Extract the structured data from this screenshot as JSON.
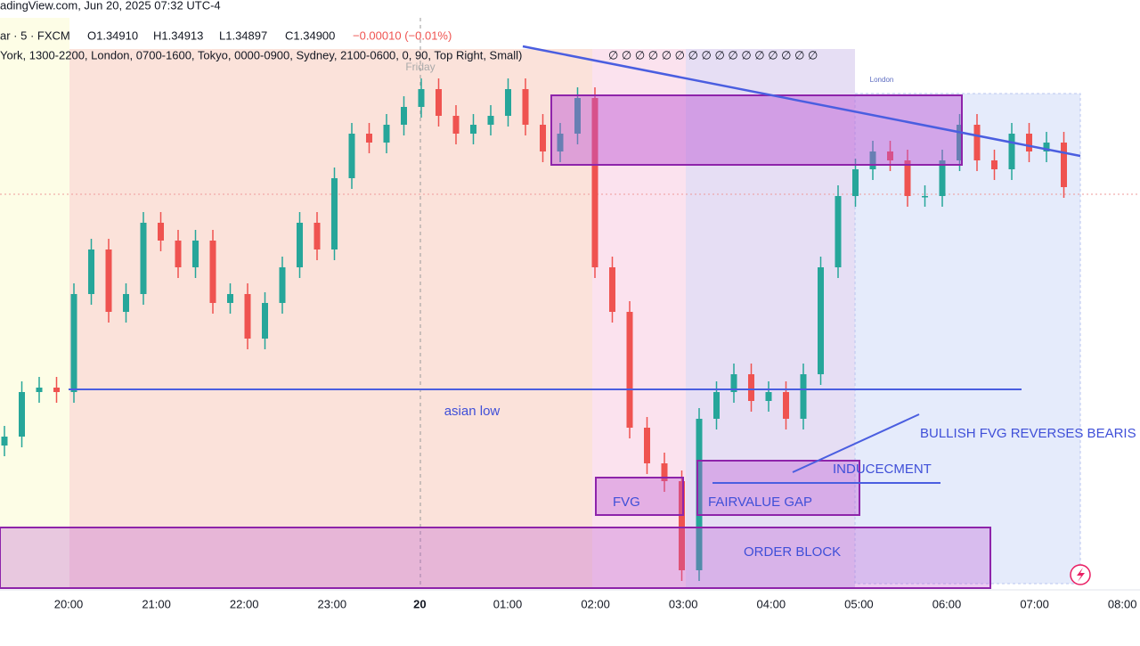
{
  "header": {
    "source": "adingView.com, Jun 20, 2025 07:32 UTC-4",
    "symbol": "ar · 5 · FXCM",
    "open": "O1.34910",
    "high": "H1.34913",
    "low": "L1.34897",
    "close": "C1.34900",
    "change": "−0.00010 (−0.01%)",
    "sessions": "York, 1300-2200, London, 0700-1600, Tokyo, 0000-0900, Sydney, 2100-0600, 0, 90, Top Right, Small)",
    "icons": "∅ ∅ ∅ ∅ ∅ ∅ ∅ ∅ ∅ ∅ ∅ ∅ ∅ ∅ ∅ ∅"
  },
  "chart_data": {
    "type": "candlestick",
    "ylim": [
      1.34458,
      1.35098
    ],
    "up_color": "#26a69a",
    "down_color": "#ef5350",
    "candles": [
      [
        1.34618,
        1.3464,
        1.34606,
        1.34628
      ],
      [
        1.34628,
        1.3469,
        1.34616,
        1.34678
      ],
      [
        1.34678,
        1.34695,
        1.34666,
        1.34683
      ],
      [
        1.34683,
        1.34695,
        1.34666,
        1.34678
      ],
      [
        1.34678,
        1.348,
        1.34666,
        1.34788
      ],
      [
        1.34788,
        1.3485,
        1.34776,
        1.34838
      ],
      [
        1.34838,
        1.3485,
        1.34756,
        1.34768
      ],
      [
        1.34768,
        1.348,
        1.34756,
        1.34788
      ],
      [
        1.34788,
        1.3488,
        1.34776,
        1.34868
      ],
      [
        1.34868,
        1.3488,
        1.34836,
        1.34848
      ],
      [
        1.34848,
        1.3486,
        1.34806,
        1.34818
      ],
      [
        1.34818,
        1.3486,
        1.34806,
        1.34848
      ],
      [
        1.34848,
        1.3486,
        1.34766,
        1.34778
      ],
      [
        1.34778,
        1.348,
        1.34766,
        1.34788
      ],
      [
        1.34788,
        1.348,
        1.34726,
        1.34738
      ],
      [
        1.34738,
        1.3479,
        1.34726,
        1.34778
      ],
      [
        1.34778,
        1.3483,
        1.34766,
        1.34818
      ],
      [
        1.34818,
        1.3488,
        1.34806,
        1.34868
      ],
      [
        1.34868,
        1.3488,
        1.34826,
        1.34838
      ],
      [
        1.34838,
        1.3493,
        1.34826,
        1.34918
      ],
      [
        1.34918,
        1.3498,
        1.34906,
        1.34968
      ],
      [
        1.34968,
        1.3498,
        1.34946,
        1.34958
      ],
      [
        1.34958,
        1.3499,
        1.34946,
        1.34978
      ],
      [
        1.34978,
        1.3501,
        1.34966,
        1.34998
      ],
      [
        1.34998,
        1.3503,
        1.34986,
        1.35018
      ],
      [
        1.35018,
        1.3503,
        1.34976,
        1.34988
      ],
      [
        1.34988,
        1.35,
        1.34956,
        1.34968
      ],
      [
        1.34968,
        1.3499,
        1.34956,
        1.34978
      ],
      [
        1.34978,
        1.35,
        1.34966,
        1.34988
      ],
      [
        1.34988,
        1.3503,
        1.34976,
        1.35018
      ],
      [
        1.35018,
        1.3503,
        1.34966,
        1.34978
      ],
      [
        1.34978,
        1.3499,
        1.34936,
        1.34948
      ],
      [
        1.34948,
        1.3498,
        1.34936,
        1.34968
      ],
      [
        1.34968,
        1.3502,
        1.34956,
        1.35008
      ],
      [
        1.35008,
        1.3502,
        1.34806,
        1.34818
      ],
      [
        1.34818,
        1.3483,
        1.34756,
        1.34768
      ],
      [
        1.34768,
        1.3478,
        1.34626,
        1.34638
      ],
      [
        1.34638,
        1.3465,
        1.34586,
        1.34598
      ],
      [
        1.34598,
        1.3461,
        1.34566,
        1.34578
      ],
      [
        1.34578,
        1.3459,
        1.34466,
        1.34478
      ],
      [
        1.34478,
        1.3466,
        1.34466,
        1.34648
      ],
      [
        1.34648,
        1.3469,
        1.34636,
        1.34678
      ],
      [
        1.34678,
        1.3471,
        1.34666,
        1.34698
      ],
      [
        1.34698,
        1.3471,
        1.34656,
        1.34668
      ],
      [
        1.34668,
        1.3469,
        1.34656,
        1.34678
      ],
      [
        1.34678,
        1.3469,
        1.34636,
        1.34648
      ],
      [
        1.34648,
        1.3471,
        1.34636,
        1.34698
      ],
      [
        1.34698,
        1.3483,
        1.34686,
        1.34818
      ],
      [
        1.34818,
        1.3491,
        1.34806,
        1.34898
      ],
      [
        1.34898,
        1.3494,
        1.34886,
        1.34928
      ],
      [
        1.34928,
        1.3496,
        1.34916,
        1.34948
      ],
      [
        1.34948,
        1.3496,
        1.34926,
        1.34938
      ],
      [
        1.34938,
        1.3495,
        1.34886,
        1.34898
      ],
      [
        1.34898,
        1.3491,
        1.34886,
        1.34898
      ],
      [
        1.34898,
        1.3495,
        1.34886,
        1.34938
      ],
      [
        1.34938,
        1.3499,
        1.34926,
        1.34978
      ],
      [
        1.34978,
        1.3499,
        1.34926,
        1.34938
      ],
      [
        1.34938,
        1.3495,
        1.34916,
        1.34928
      ],
      [
        1.34928,
        1.3498,
        1.34916,
        1.34968
      ],
      [
        1.34968,
        1.3498,
        1.34936,
        1.34948
      ],
      [
        1.34948,
        1.3497,
        1.34936,
        1.34958
      ],
      [
        1.34958,
        1.3497,
        1.34896,
        1.34908
      ]
    ],
    "time_labels": [
      "20:00",
      "21:00",
      "22:00",
      "23:00",
      "20",
      "01:00",
      "02:00",
      "03:00",
      "04:00",
      "05:00",
      "06:00",
      "07:00",
      "08:00"
    ],
    "asian_low": {
      "label": "asian low",
      "value": 1.34681
    }
  },
  "annotations": {
    "friday": "Friday",
    "london": "London",
    "bullish": "BULLISH FVG REVERSES BEARIS",
    "inducement": "INDUCECMENT",
    "fvg": "FVG",
    "fair_value_gap": "FAIRVALUE GAP",
    "order_block": "ORDER BLOCK"
  }
}
